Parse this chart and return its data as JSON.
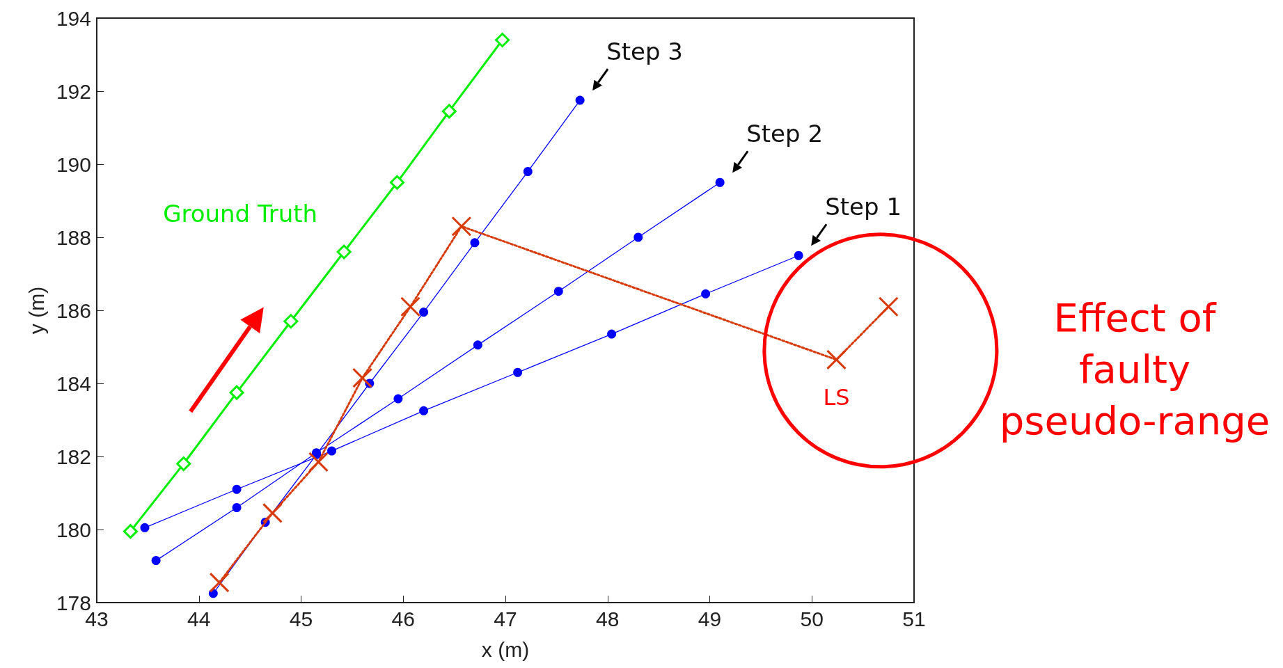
{
  "chart_data": {
    "type": "line",
    "xlabel": "x (m)",
    "ylabel": "y (m)",
    "xlim": [
      43,
      51
    ],
    "xticks": [
      43,
      44,
      45,
      46,
      47,
      48,
      49,
      50,
      51
    ],
    "ylim": [
      178,
      194
    ],
    "yticks": [
      178,
      180,
      182,
      184,
      186,
      188,
      190,
      192,
      194
    ],
    "grid": false,
    "legend": false,
    "series": [
      {
        "name": "Ground Truth",
        "color": "#00ee00",
        "marker": "diamond",
        "line_style": "solid",
        "x": [
          43.33,
          43.85,
          44.37,
          44.9,
          45.42,
          45.94,
          46.45,
          46.97
        ],
        "values": [
          179.95,
          181.8,
          183.75,
          185.7,
          187.6,
          189.5,
          191.45,
          193.4
        ]
      },
      {
        "color": "#0000ff",
        "marker": "circle",
        "line_style": "solid",
        "x": [
          43.47,
          44.37,
          45.3,
          46.2,
          47.12,
          48.04,
          48.96,
          49.87
        ],
        "values": [
          180.05,
          181.1,
          182.15,
          183.25,
          184.3,
          185.35,
          186.45,
          187.5
        ]
      },
      {
        "color": "#0000ff",
        "marker": "circle",
        "line_style": "solid",
        "x": [
          43.58,
          44.37,
          45.15,
          45.95,
          46.73,
          47.52,
          48.3,
          49.1
        ],
        "values": [
          179.15,
          180.6,
          182.1,
          183.58,
          185.05,
          186.52,
          188.0,
          189.5
        ]
      },
      {
        "color": "#0000ff",
        "marker": "circle",
        "line_style": "solid",
        "x": [
          44.14,
          44.65,
          45.15,
          45.67,
          46.2,
          46.7,
          47.22,
          47.73
        ],
        "values": [
          178.25,
          180.2,
          182.05,
          184.0,
          185.95,
          187.85,
          189.8,
          191.75
        ]
      },
      {
        "name": "LS",
        "color": "#d83a0a",
        "marker": "cross",
        "line_style": "dotted",
        "x": [
          44.2,
          44.72,
          45.17,
          45.6,
          46.07,
          46.57,
          50.24,
          50.75
        ],
        "values": [
          178.55,
          180.45,
          181.85,
          184.15,
          186.1,
          188.3,
          184.65,
          186.1
        ]
      }
    ],
    "annotations": [
      {
        "text": "Step 1",
        "x": 49.87,
        "y": 187.5
      },
      {
        "text": "Step 2",
        "x": 49.1,
        "y": 189.5
      },
      {
        "text": "Step 3",
        "x": 47.73,
        "y": 191.75
      },
      "Effect of faulty pseudo-range"
    ]
  }
}
